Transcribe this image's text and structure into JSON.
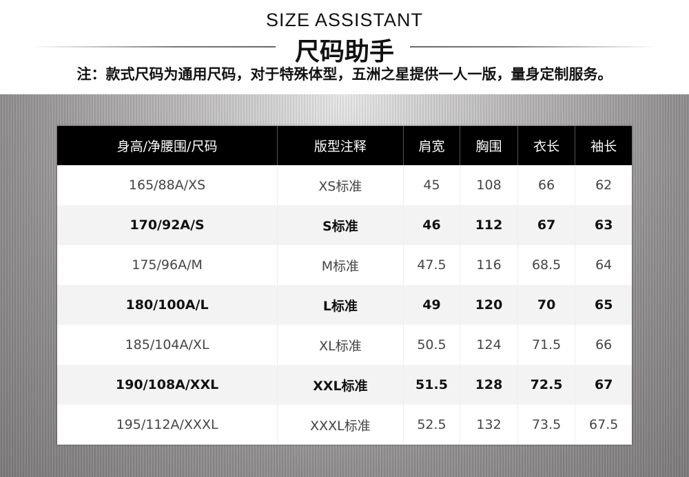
{
  "header": {
    "title_en": "SIZE ASSISTANT",
    "title_cn": "尺码助手",
    "note": "注：款式尺码为通用尺码，对于特殊体型，五洲之星提供一人一版，量身定制服务。"
  },
  "table": {
    "columns": [
      "身高/净腰围/尺码",
      "版型注释",
      "肩宽",
      "胸围",
      "衣长",
      "袖长"
    ],
    "rows": [
      [
        "165/88A/XS",
        "XS标准",
        "45",
        "108",
        "66",
        "62"
      ],
      [
        "170/92A/S",
        "S标准",
        "46",
        "112",
        "67",
        "63"
      ],
      [
        "175/96A/M",
        "M标准",
        "47.5",
        "116",
        "68.5",
        "64"
      ],
      [
        "180/100A/L",
        "L标准",
        "49",
        "120",
        "70",
        "65"
      ],
      [
        "185/104A/XL",
        "XL标准",
        "50.5",
        "124",
        "71.5",
        "66"
      ],
      [
        "190/108A/XXL",
        "XXL标准",
        "51.5",
        "128",
        "72.5",
        "67"
      ],
      [
        "195/112A/XXXL",
        "XXXL标准",
        "52.5",
        "132",
        "73.5",
        "67.5"
      ]
    ]
  }
}
